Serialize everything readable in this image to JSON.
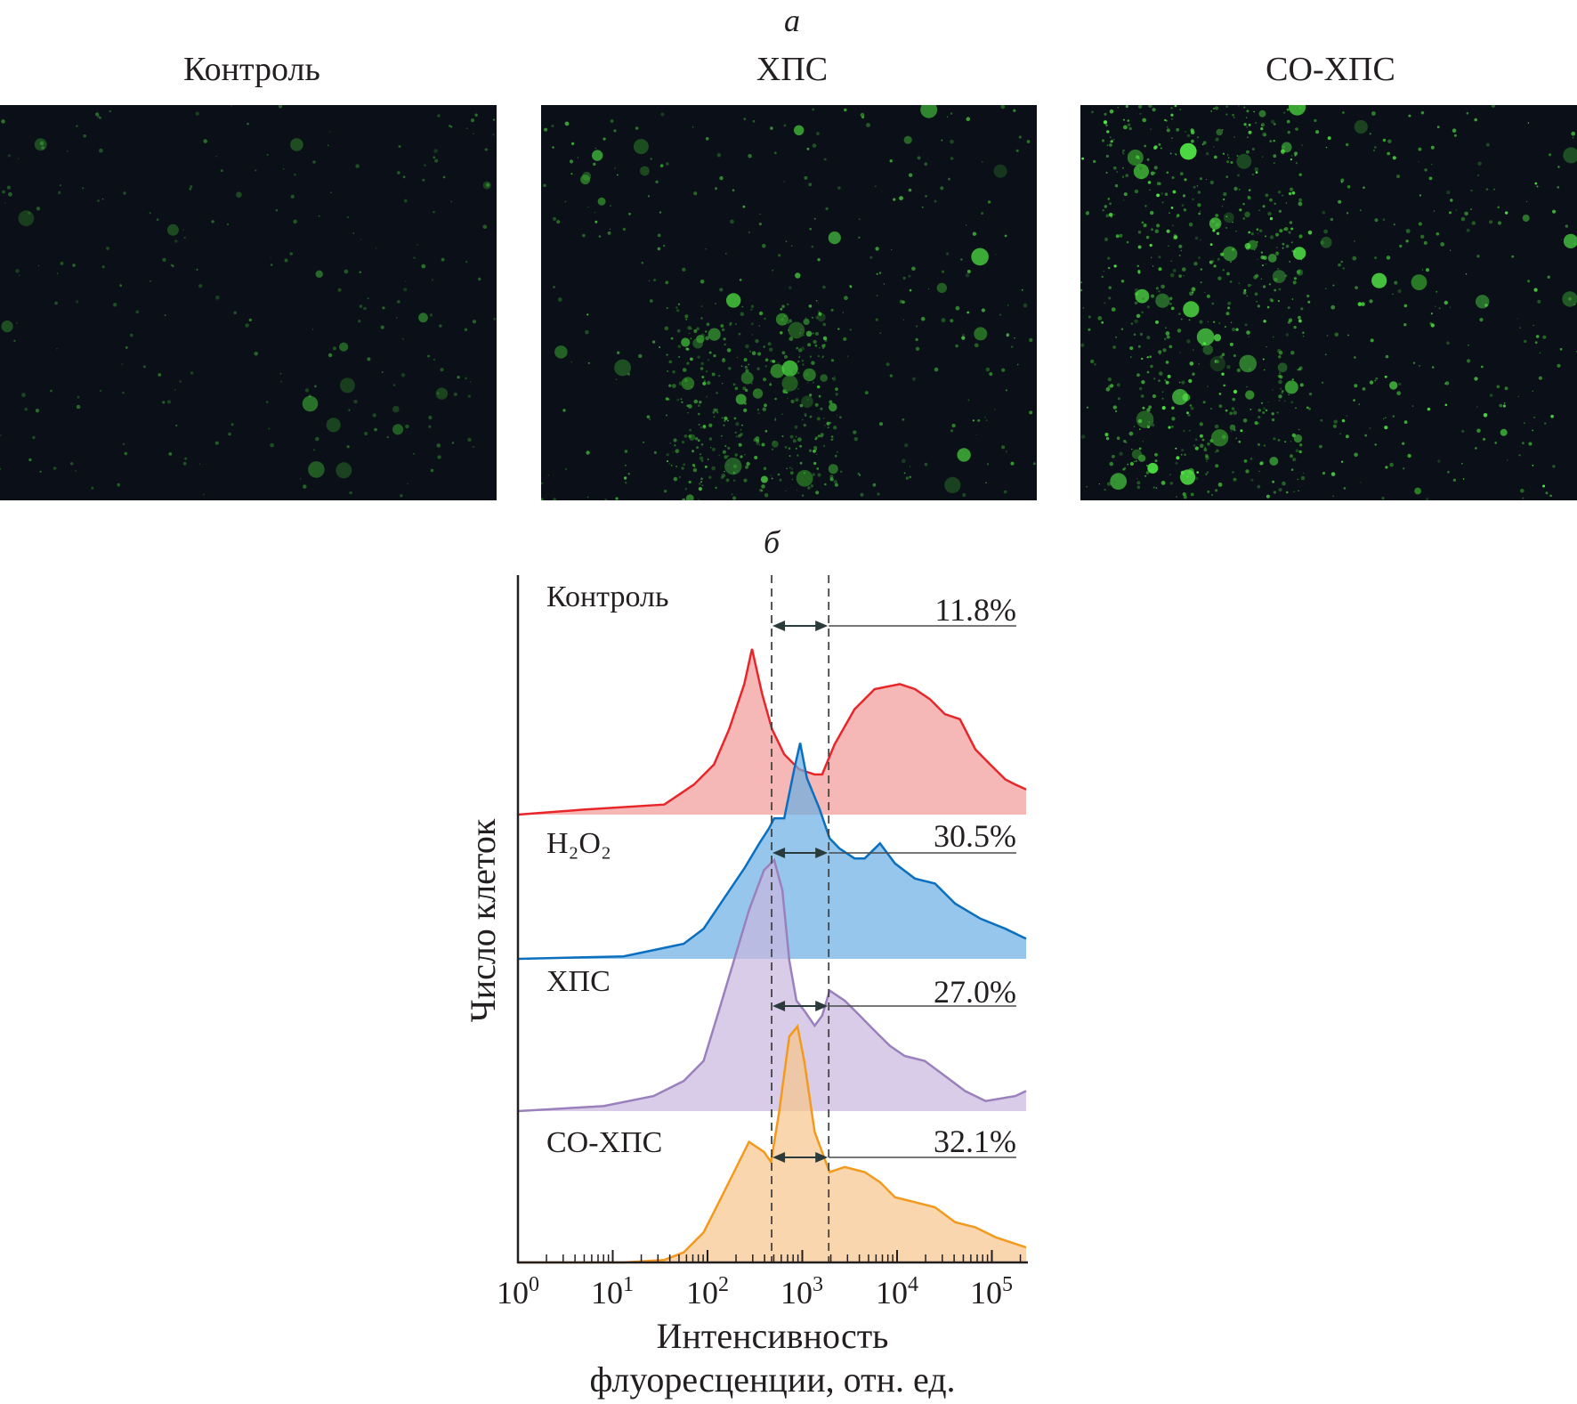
{
  "panel_a": {
    "letter": "а",
    "photos": [
      {
        "title": "Контроль",
        "density": 0.35,
        "intensity": 0.5
      },
      {
        "title": "ХПС",
        "density": 1.0,
        "intensity": 0.8
      },
      {
        "title": "СО-ХПС",
        "density": 1.4,
        "intensity": 1.0
      }
    ]
  },
  "panel_b": {
    "letter": "б"
  },
  "chart_data": {
    "type": "area",
    "xscale": "log",
    "xlim": [
      1,
      230000
    ],
    "xlabel_line1": "Интенсивность",
    "xlabel_line2": "флуоресценции, отн. ед.",
    "ylabel": "Число клеток",
    "x_ticks": [
      {
        "base": "10",
        "exp": "0",
        "value": 1
      },
      {
        "base": "10",
        "exp": "1",
        "value": 10
      },
      {
        "base": "10",
        "exp": "2",
        "value": 100
      },
      {
        "base": "10",
        "exp": "3",
        "value": 1000
      },
      {
        "base": "10",
        "exp": "4",
        "value": 10000
      },
      {
        "base": "10",
        "exp": "5",
        "value": 100000
      }
    ],
    "gate": [
      475,
      1900
    ],
    "grid": false,
    "series": [
      {
        "name": "Контроль",
        "percent": "11.8%",
        "line": "#e8262a",
        "fill": "#f29a97",
        "points": [
          [
            1,
            0
          ],
          [
            4.9,
            2
          ],
          [
            35,
            4
          ],
          [
            72,
            12
          ],
          [
            117,
            20
          ],
          [
            169,
            34
          ],
          [
            244,
            52
          ],
          [
            295,
            66
          ],
          [
            377,
            48
          ],
          [
            479,
            34
          ],
          [
            645,
            24
          ],
          [
            930,
            18
          ],
          [
            1350,
            16
          ],
          [
            1620,
            16
          ],
          [
            2190,
            28
          ],
          [
            3560,
            42
          ],
          [
            5800,
            50
          ],
          [
            10700,
            52
          ],
          [
            15400,
            50
          ],
          [
            22200,
            46
          ],
          [
            32000,
            40
          ],
          [
            46000,
            38
          ],
          [
            67000,
            26
          ],
          [
            96000,
            20
          ],
          [
            139000,
            14
          ],
          [
            177000,
            12
          ],
          [
            230000,
            10
          ]
        ]
      },
      {
        "name": "H₂O₂",
        "percent": "30.5%",
        "line": "#0a6fbf",
        "fill": "#6aaee3",
        "points": [
          [
            1,
            0
          ],
          [
            13,
            1
          ],
          [
            56,
            6
          ],
          [
            91,
            12
          ],
          [
            149,
            24
          ],
          [
            244,
            36
          ],
          [
            352,
            46
          ],
          [
            445,
            52
          ],
          [
            505,
            56
          ],
          [
            645,
            56
          ],
          [
            826,
            76
          ],
          [
            950,
            86
          ],
          [
            1120,
            72
          ],
          [
            1510,
            60
          ],
          [
            1940,
            48
          ],
          [
            2460,
            44
          ],
          [
            3560,
            40
          ],
          [
            4550,
            40
          ],
          [
            6600,
            46
          ],
          [
            9500,
            38
          ],
          [
            15400,
            32
          ],
          [
            25100,
            30
          ],
          [
            41000,
            22
          ],
          [
            76000,
            16
          ],
          [
            139000,
            12
          ],
          [
            230000,
            8
          ]
        ]
      },
      {
        "name": "ХПС",
        "percent": "27.0%",
        "line": "#9a80bd",
        "fill": "#c9b6de",
        "points": [
          [
            1,
            0
          ],
          [
            8,
            2
          ],
          [
            27,
            6
          ],
          [
            56,
            12
          ],
          [
            91,
            20
          ],
          [
            132,
            40
          ],
          [
            190,
            60
          ],
          [
            274,
            80
          ],
          [
            395,
            96
          ],
          [
            505,
            100
          ],
          [
            616,
            88
          ],
          [
            730,
            60
          ],
          [
            867,
            44
          ],
          [
            1050,
            40
          ],
          [
            1350,
            34
          ],
          [
            1620,
            38
          ],
          [
            1940,
            48
          ],
          [
            2800,
            44
          ],
          [
            4040,
            38
          ],
          [
            5800,
            32
          ],
          [
            8400,
            26
          ],
          [
            12000,
            22
          ],
          [
            19600,
            20
          ],
          [
            32000,
            14
          ],
          [
            52000,
            8
          ],
          [
            86000,
            4
          ],
          [
            177000,
            6
          ],
          [
            230000,
            8
          ]
        ]
      },
      {
        "name": "СО-ХПС",
        "percent": "32.1%",
        "line": "#f39a1e",
        "fill": "#f7c48a",
        "points": [
          [
            1,
            0
          ],
          [
            13,
            0
          ],
          [
            35,
            1
          ],
          [
            56,
            4
          ],
          [
            91,
            12
          ],
          [
            132,
            24
          ],
          [
            190,
            36
          ],
          [
            274,
            48
          ],
          [
            395,
            44
          ],
          [
            467,
            40
          ],
          [
            570,
            60
          ],
          [
            730,
            90
          ],
          [
            890,
            94
          ],
          [
            1050,
            80
          ],
          [
            1350,
            52
          ],
          [
            1620,
            44
          ],
          [
            1940,
            36
          ],
          [
            2800,
            38
          ],
          [
            4550,
            36
          ],
          [
            6600,
            32
          ],
          [
            9500,
            26
          ],
          [
            15400,
            24
          ],
          [
            25100,
            22
          ],
          [
            41000,
            16
          ],
          [
            67000,
            14
          ],
          [
            110000,
            10
          ],
          [
            230000,
            6
          ]
        ]
      }
    ]
  }
}
